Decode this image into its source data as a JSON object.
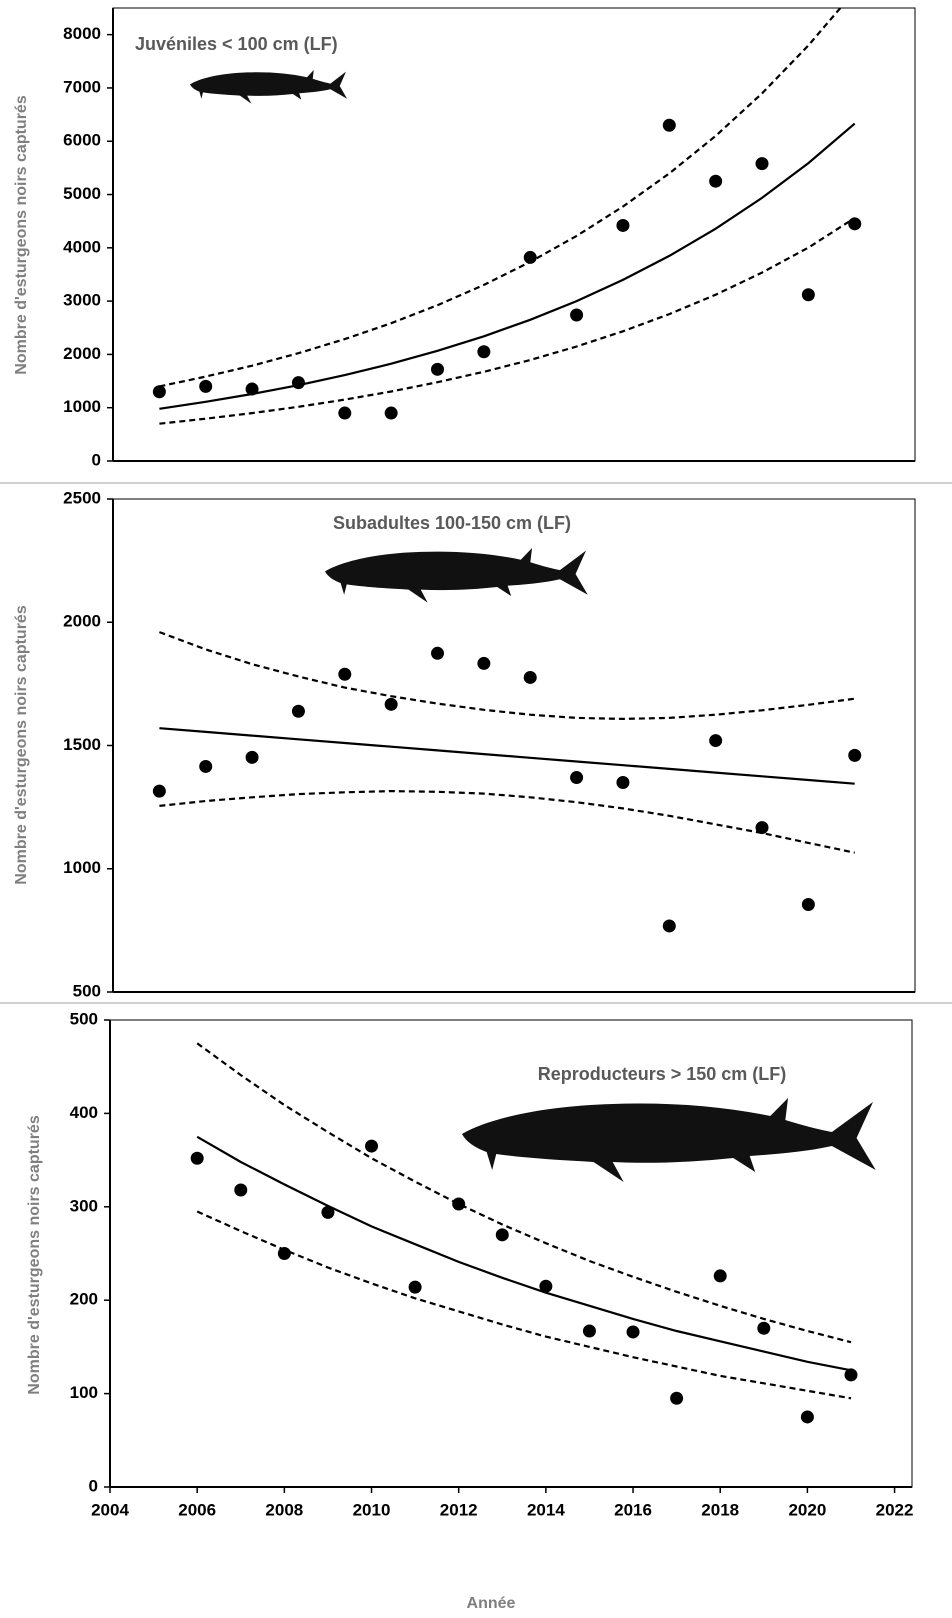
{
  "chart_data": [
    {
      "type": "scatter",
      "title": "Juvéniles < 100 cm (LF)",
      "y_label": "Nombre d'esturgeons noirs capturés",
      "x": [
        2006,
        2007,
        2008,
        2009,
        2010,
        2011,
        2012,
        2013,
        2014,
        2015,
        2016,
        2017,
        2018,
        2019,
        2020,
        2021
      ],
      "xlim": [
        2005,
        2022.3
      ],
      "ylim": [
        0,
        8500
      ],
      "yticks": [
        0,
        1000,
        2000,
        3000,
        4000,
        5000,
        6000,
        7000,
        8000
      ],
      "series": [
        {
          "kind": "points",
          "color": "#000000",
          "values": [
            1300,
            1400,
            1350,
            1470,
            900,
            900,
            1720,
            2050,
            3820,
            2740,
            4420,
            6300,
            5250,
            5580,
            3120,
            4450
          ]
        },
        {
          "kind": "solid",
          "color": "#000000",
          "values": [
            980,
            1110,
            1257,
            1423,
            1612,
            1825,
            2067,
            2340,
            2650,
            3001,
            3399,
            3849,
            4358,
            4936,
            5589,
            6330
          ]
        },
        {
          "kind": "dashed",
          "color": "#000000",
          "values": [
            1400,
            1583,
            1789,
            2023,
            2287,
            2585,
            2923,
            3304,
            3735,
            4223,
            4774,
            5397,
            6101,
            6898,
            7798,
            8816
          ]
        },
        {
          "kind": "dashed",
          "color": "#000000",
          "values": [
            700,
            793,
            898,
            1017,
            1152,
            1305,
            1478,
            1674,
            1896,
            2148,
            2433,
            2756,
            3121,
            3535,
            4004,
            4560
          ]
        }
      ]
    },
    {
      "type": "scatter",
      "title": "Subadultes 100-150 cm (LF)",
      "y_label": "Nombre d'esturgeons noirs capturés",
      "x": [
        2006,
        2007,
        2008,
        2009,
        2010,
        2011,
        2012,
        2013,
        2014,
        2015,
        2016,
        2017,
        2018,
        2019,
        2020,
        2021
      ],
      "xlim": [
        2005,
        2022.3
      ],
      "ylim": [
        500,
        2500
      ],
      "yticks": [
        500,
        1000,
        1500,
        2000,
        2500
      ],
      "series": [
        {
          "kind": "points",
          "color": "#000000",
          "values": [
            1315,
            1415,
            1452,
            1639,
            1789,
            1667,
            1874,
            1833,
            1776,
            1370,
            1350,
            768,
            1520,
            1167,
            855,
            1460
          ]
        },
        {
          "kind": "solid",
          "color": "#000000",
          "values": [
            1570,
            1555,
            1540,
            1525,
            1510,
            1495,
            1480,
            1465,
            1450,
            1435,
            1420,
            1405,
            1390,
            1375,
            1360,
            1345
          ]
        },
        {
          "kind": "dashed",
          "color": "#000000",
          "values": [
            1960,
            1890,
            1830,
            1780,
            1735,
            1700,
            1670,
            1645,
            1625,
            1612,
            1608,
            1612,
            1625,
            1643,
            1665,
            1690
          ]
        },
        {
          "kind": "dashed",
          "color": "#000000",
          "values": [
            1255,
            1275,
            1290,
            1303,
            1310,
            1315,
            1312,
            1305,
            1290,
            1270,
            1245,
            1215,
            1180,
            1145,
            1105,
            1065
          ]
        }
      ]
    },
    {
      "type": "scatter",
      "title": "Reproducteurs > 150 cm (LF)",
      "y_label": "Nombre d'esturgeons noirs capturés",
      "x_label": "Année",
      "x": [
        2006,
        2007,
        2008,
        2009,
        2010,
        2011,
        2012,
        2013,
        2014,
        2015,
        2016,
        2017,
        2018,
        2019,
        2020,
        2021
      ],
      "xlim": [
        2004,
        2022.4
      ],
      "xticks": [
        2004,
        2006,
        2008,
        2010,
        2012,
        2014,
        2016,
        2018,
        2020,
        2022
      ],
      "ylim": [
        0,
        500
      ],
      "yticks": [
        0,
        100,
        200,
        300,
        400,
        500
      ],
      "series": [
        {
          "kind": "points",
          "color": "#000000",
          "values": [
            352,
            318,
            250,
            294,
            365,
            214,
            303,
            270,
            215,
            167,
            166,
            95,
            226,
            170,
            75,
            120
          ]
        },
        {
          "kind": "solid",
          "color": "#000000",
          "values": [
            375,
            348,
            324,
            301,
            279,
            260,
            241,
            224,
            208,
            194,
            180,
            167,
            156,
            145,
            134,
            125
          ]
        },
        {
          "kind": "dashed",
          "color": "#000000",
          "values": [
            475,
            441,
            409,
            380,
            352,
            327,
            303,
            281,
            261,
            242,
            225,
            209,
            194,
            180,
            167,
            155
          ]
        },
        {
          "kind": "dashed",
          "color": "#000000",
          "values": [
            295,
            274,
            254,
            235,
            218,
            202,
            188,
            174,
            161,
            150,
            139,
            129,
            119,
            111,
            103,
            95
          ]
        }
      ]
    }
  ]
}
